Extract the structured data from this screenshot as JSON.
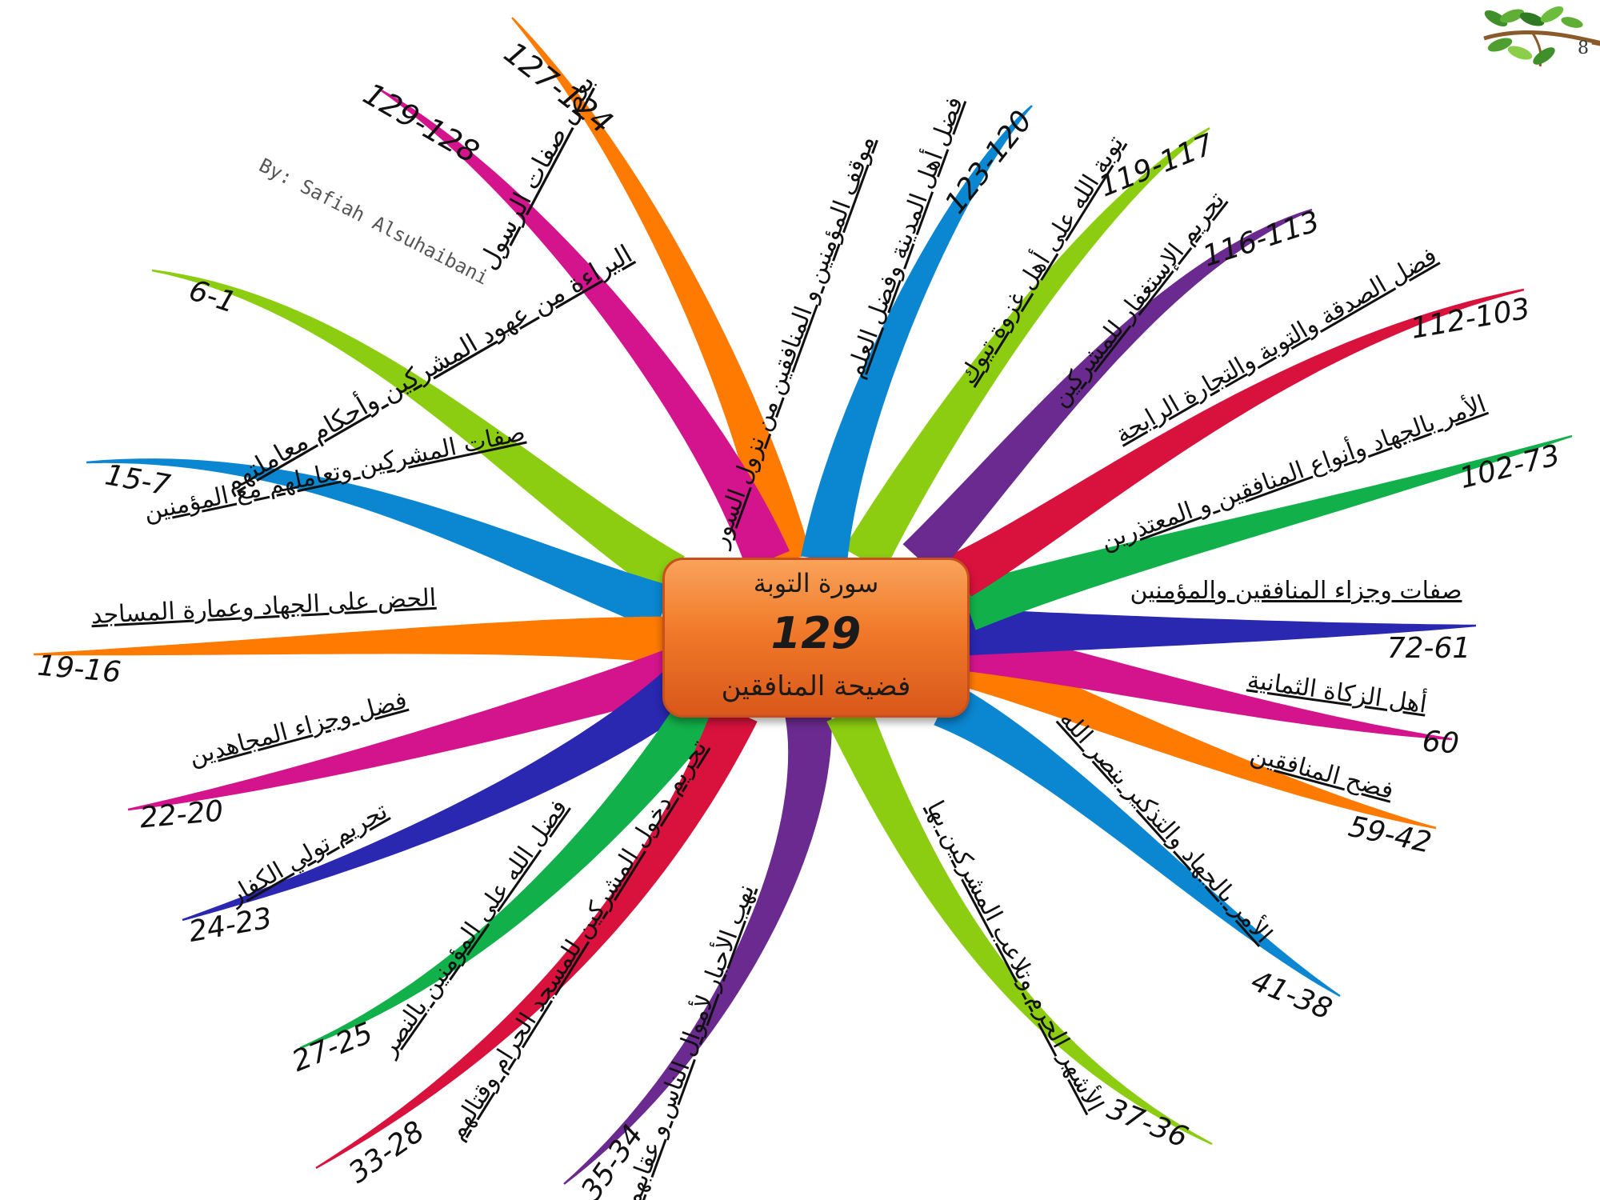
{
  "center": {
    "title": "سورة التوبة",
    "count": "129",
    "subtitle": "فضيحة المنافقين"
  },
  "credit": "By: Safiah Alsuhaibani",
  "page_number": "8",
  "branches": [
    {
      "label": "موقف المؤمنين و المنافقين من نزول السور",
      "range": "127-124",
      "color": "#ff7a00"
    },
    {
      "label": "بعض صفات الرسول",
      "range": "129-128",
      "color": "#d4148c"
    },
    {
      "label": "البراءة من عهود المشركين وأحكام معاملتهم",
      "range": "6-1",
      "color": "#8ccd12"
    },
    {
      "label": "صفات المشركين وتعاملهم مع المؤمنين",
      "range": "15-7",
      "color": "#0b86d0"
    },
    {
      "label": "الحض على الجهاد وعمارة المساجد",
      "range": "19-16",
      "color": "#ff7a00"
    },
    {
      "label": "فضل وجزاء المجاهدين",
      "range": "22-20",
      "color": "#d4148c"
    },
    {
      "label": "تحريم تولي الكفار",
      "range": "24-23",
      "color": "#2a27b0"
    },
    {
      "label": "فضل الله على المؤمنين بالنصر",
      "range": "27-25",
      "color": "#12b04a"
    },
    {
      "label": "تحريم دخول المشركين للمسجد الحرام وقتالهم",
      "range": "33-28",
      "color": "#d8123c"
    },
    {
      "label": "نهب الأحبار لأموال الناس و عقابهم",
      "range": "35-34",
      "color": "#6a2a90"
    },
    {
      "label": "الأشهر الحرم وتلاعب المشركين بها",
      "range": "37-36",
      "color": "#8ccd12"
    },
    {
      "label": "الأمر بالجهاد والتذكير بنصر الله",
      "range": "41-38",
      "color": "#0b86d0"
    },
    {
      "label": "فضح المنافقين",
      "range": "59-42",
      "color": "#ff7a00"
    },
    {
      "label": "أهل الزكاة الثمانية",
      "range": "60",
      "color": "#d4148c"
    },
    {
      "label": "صفات وجزاء المنافقين والمؤمنين",
      "range": "72-61",
      "color": "#2a27b0"
    },
    {
      "label": "الأمر بالجهاد وأنواع المنافقين و المعتذرين",
      "range": "102-73",
      "color": "#12b04a"
    },
    {
      "label": "فضل الصدقة والتوبة والتجارة الرابحة",
      "range": "112-103",
      "color": "#d8123c"
    },
    {
      "label": "تحريم الإستغفار للمشركين",
      "range": "116-113",
      "color": "#6a2a90"
    },
    {
      "label": "توبة الله على أهل غزوة تبوك",
      "range": "119-117",
      "color": "#8ccd12"
    },
    {
      "label": "فضل أهل المدينة وفضل العلم",
      "range": "123-120",
      "color": "#0b86d0"
    }
  ]
}
